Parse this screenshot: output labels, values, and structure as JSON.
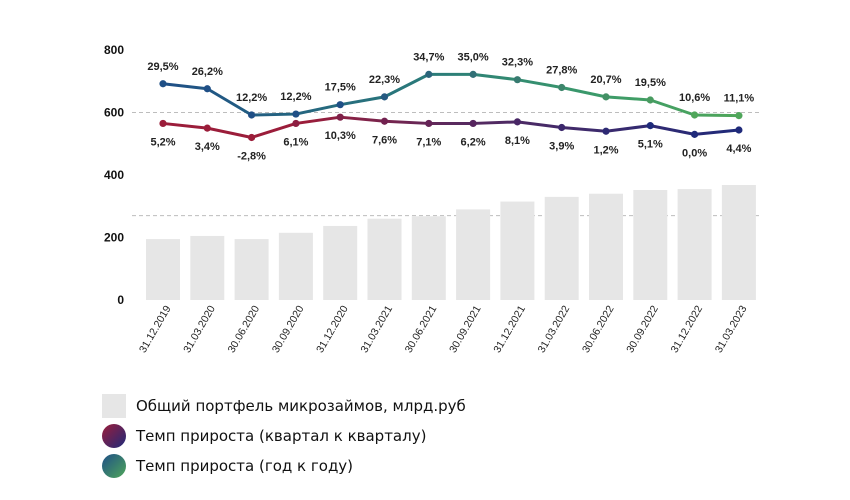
{
  "chart_data": {
    "type": "bar",
    "categories": [
      "31.12.2019",
      "31.03.2020",
      "30.06.2020",
      "30.09.2020",
      "31.12.2020",
      "31.03.2021",
      "30.06.2021",
      "30.09.2021",
      "31.12.2021",
      "31.03.2022",
      "30.06.2022",
      "30.09.2022",
      "31.12.2022",
      "31.03.2023"
    ],
    "ylim": [
      0,
      800
    ],
    "yticks": [
      0,
      200,
      400,
      600,
      800
    ],
    "grid": "dashed reference lines at 600 and 270",
    "portfolio": {
      "name": "Общий портфель микрозаймов, млрд.руб",
      "color": "#e6e6e6",
      "values": [
        195,
        205,
        195,
        215,
        237,
        260,
        268,
        290,
        315,
        330,
        340,
        352,
        355,
        368
      ]
    },
    "qoq": {
      "name": "Темп прироста (квартал к кварталу)",
      "colors": [
        "#9b1d3a",
        "#1f2a7a"
      ],
      "plot_values": [
        565,
        550,
        520,
        565,
        585,
        572,
        565,
        565,
        570,
        552,
        540,
        558,
        530,
        544
      ],
      "labels": [
        "5,2%",
        "3,4%",
        "-2,8%",
        "6,1%",
        "10,3%",
        "7,6%",
        "7,1%",
        "6,2%",
        "8,1%",
        "3,9%",
        "1,2%",
        "5,1%",
        "0,0%",
        "4,4%"
      ]
    },
    "yoy": {
      "name": "Темп прироста (год к году)",
      "colors": [
        "#1f4f86",
        "#4fa65a"
      ],
      "plot_values": [
        692,
        676,
        592,
        595,
        625,
        650,
        722,
        722,
        705,
        680,
        650,
        640,
        592,
        590
      ],
      "labels": [
        "29,5%",
        "26,2%",
        "12,2%",
        "12,2%",
        "17,5%",
        "22,3%",
        "34,7%",
        "35,0%",
        "32,3%",
        "27,8%",
        "20,7%",
        "19,5%",
        "10,6%",
        "11,1%"
      ]
    }
  },
  "legend": {
    "portfolio_label": "Общий портфель микрозаймов, млрд.руб",
    "qoq_label": "Темп прироста (квартал к кварталу)",
    "yoy_label": "Темп прироста (год к году)"
  }
}
